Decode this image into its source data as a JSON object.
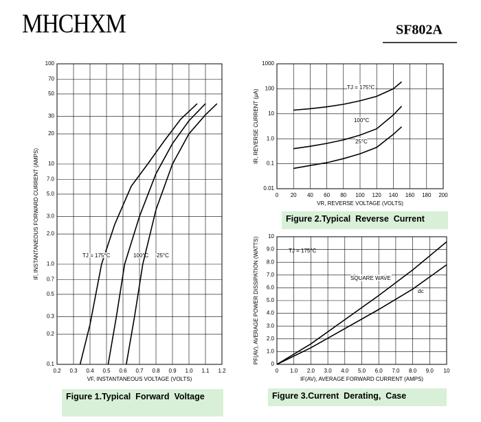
{
  "header": {
    "brand": "MHCHXM",
    "part": "SF802A"
  },
  "chart_data": [
    {
      "type": "line",
      "title": "Figure 1.Typical  Forward  Voltage",
      "x_label": "VF, INSTANTANEOUS VOLTAGE (VOLTS)",
      "y_label": "IF, INSTANTANEOUS FORWARD CURRENT (AMPS)",
      "log_y": true,
      "grid": true,
      "xlim": [
        0.2,
        1.2
      ],
      "xticks": [
        0.2,
        0.3,
        0.4,
        0.5,
        0.6,
        0.7,
        0.8,
        0.9,
        {
          "value": 1,
          "label": "1.0"
        },
        1.1,
        1.2
      ],
      "ylim": [
        0.1,
        100
      ],
      "yticks": [
        0.1,
        0.2,
        0.3,
        0.5,
        0.7,
        {
          "value": 1,
          "label": "1.0"
        },
        {
          "value": 2,
          "label": "2.0"
        },
        {
          "value": 3,
          "label": "3.0"
        },
        {
          "value": 5,
          "label": "5.0"
        },
        {
          "value": 7,
          "label": "7.0"
        },
        10,
        20,
        30,
        50,
        70,
        100
      ],
      "series": [
        {
          "name": "TJ = 175°C",
          "color": "#000000",
          "x": [
            0.34,
            0.4,
            0.47,
            0.55,
            0.65,
            0.75,
            0.85,
            0.95,
            1.05
          ],
          "values": [
            0.1,
            0.25,
            1,
            2.5,
            6,
            10,
            17,
            28,
            40
          ]
        },
        {
          "name": "100°C",
          "color": "#000000",
          "x": [
            0.51,
            0.56,
            0.61,
            0.7,
            0.8,
            0.9,
            1.0,
            1.1
          ],
          "values": [
            0.1,
            0.3,
            1,
            3,
            8,
            16,
            27,
            40
          ]
        },
        {
          "name": "25°C",
          "color": "#000000",
          "x": [
            0.62,
            0.67,
            0.72,
            0.8,
            0.9,
            1.0,
            1.1,
            1.17
          ],
          "values": [
            0.1,
            0.3,
            1,
            3.5,
            10,
            20,
            31,
            40
          ]
        }
      ]
    },
    {
      "type": "line",
      "title": "Figure 2.Typical  Reverse  Current",
      "x_label": "VR, REVERSE VOLTAGE (VOLTS)",
      "y_label": "IR, REVERSE CURRENT (μA)",
      "log_y": true,
      "grid": true,
      "xlim": [
        0,
        200
      ],
      "xticks": [
        0,
        20,
        40,
        60,
        80,
        100,
        120,
        140,
        160,
        180,
        200
      ],
      "ylim": [
        0.01,
        1000
      ],
      "yticks": [
        0.01,
        0.1,
        {
          "value": 1,
          "label": "1.0"
        },
        10,
        100,
        1000
      ],
      "series": [
        {
          "name": "TJ = 175°C",
          "color": "#000000",
          "x": [
            20,
            40,
            60,
            80,
            100,
            120,
            140,
            150
          ],
          "values": [
            14,
            16,
            19,
            24,
            33,
            50,
            100,
            190
          ]
        },
        {
          "name": "100°C",
          "color": "#000000",
          "x": [
            20,
            40,
            60,
            80,
            100,
            120,
            140,
            150
          ],
          "values": [
            0.4,
            0.5,
            0.65,
            0.9,
            1.4,
            2.5,
            9,
            20
          ]
        },
        {
          "name": "25°C",
          "color": "#000000",
          "x": [
            20,
            40,
            60,
            80,
            100,
            120,
            140,
            150
          ],
          "values": [
            0.065,
            0.085,
            0.11,
            0.16,
            0.25,
            0.45,
            1.5,
            3
          ]
        }
      ]
    },
    {
      "type": "line",
      "title": "Figure 3.Current  Derating,  Case",
      "x_label": "IF(AV), AVERAGE FORWARD CURRENT (AMPS)",
      "y_label": "PF(AV), AVERAGE POWER DISSIPATION (WATTS)",
      "annotation": "TJ = 175°C",
      "log_y": false,
      "grid": true,
      "xlim": [
        0,
        10
      ],
      "xticks": [
        0,
        {
          "value": 1,
          "label": "1.0"
        },
        {
          "value": 2,
          "label": "2.0"
        },
        {
          "value": 3,
          "label": "3.0"
        },
        {
          "value": 4,
          "label": "4.0"
        },
        {
          "value": 5,
          "label": "5.0"
        },
        {
          "value": 6,
          "label": "6.0"
        },
        {
          "value": 7,
          "label": "7.0"
        },
        {
          "value": 8,
          "label": "8.0"
        },
        {
          "value": 9,
          "label": "9.0"
        },
        10
      ],
      "ylim": [
        0,
        10
      ],
      "yticks": [
        0,
        {
          "value": 1,
          "label": "1.0"
        },
        {
          "value": 2,
          "label": "2.0"
        },
        {
          "value": 3,
          "label": "3.0"
        },
        {
          "value": 4,
          "label": "4.0"
        },
        {
          "value": 5,
          "label": "5.0"
        },
        {
          "value": 6,
          "label": "6.0"
        },
        {
          "value": 7,
          "label": "7.0"
        },
        {
          "value": 8,
          "label": "8.0"
        },
        {
          "value": 9,
          "label": "9.0"
        },
        10
      ],
      "series": [
        {
          "name": "SQUARE WAVE",
          "color": "#000000",
          "x": [
            0,
            2,
            4,
            6,
            8,
            10
          ],
          "values": [
            0,
            1.6,
            3.5,
            5.4,
            7.4,
            9.6
          ]
        },
        {
          "name": "dc",
          "color": "#000000",
          "x": [
            0,
            2,
            4,
            6,
            8,
            10
          ],
          "values": [
            0,
            1.3,
            2.8,
            4.3,
            5.9,
            7.8
          ]
        }
      ]
    }
  ]
}
